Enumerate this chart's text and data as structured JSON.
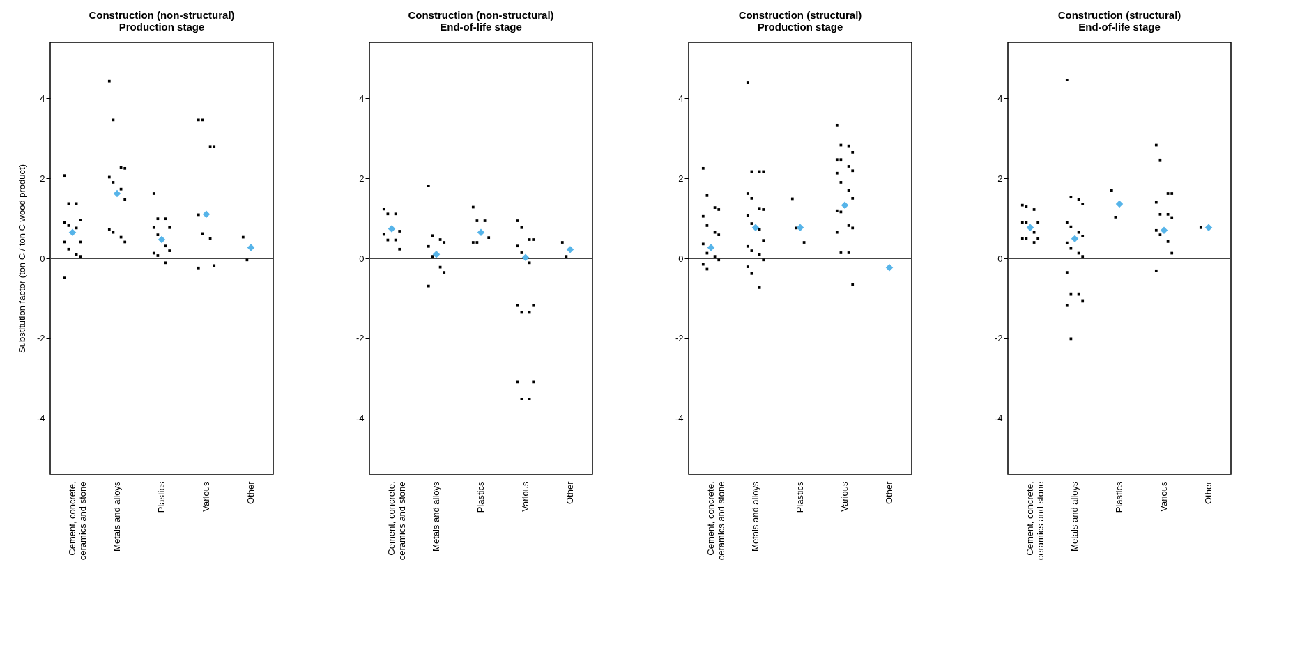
{
  "chart_data": [
    {
      "type": "scatter",
      "title": "Construction (non-structural)\nProduction stage",
      "ylabel": "Substitution factor (ton C / ton C wood product)",
      "categories": [
        "Cement, concrete, ceramics and stone",
        "Metals and alloys",
        "Plastics",
        "Various",
        "Other"
      ],
      "ylim": [
        -5.4,
        5.4
      ],
      "yticks": [
        -4,
        -2,
        0,
        2,
        4
      ],
      "grid": false,
      "ref_lines": [
        {
          "axis": "y",
          "value": 0
        }
      ],
      "series": [
        {
          "color": "#000000",
          "marker": "square",
          "x": [
            "Cement, concrete, ceramics and stone",
            "Cement, concrete, ceramics and stone",
            "Cement, concrete, ceramics and stone",
            "Cement, concrete, ceramics and stone",
            "Cement, concrete, ceramics and stone",
            "Cement, concrete, ceramics and stone",
            "Cement, concrete, ceramics and stone",
            "Cement, concrete, ceramics and stone",
            "Cement, concrete, ceramics and stone",
            "Cement, concrete, ceramics and stone",
            "Cement, concrete, ceramics and stone",
            "Cement, concrete, ceramics and stone",
            "Cement, concrete, ceramics and stone",
            "Metals and alloys",
            "Metals and alloys",
            "Metals and alloys",
            "Metals and alloys",
            "Metals and alloys",
            "Metals and alloys",
            "Metals and alloys",
            "Metals and alloys",
            "Metals and alloys",
            "Metals and alloys",
            "Metals and alloys",
            "Metals and alloys",
            "Plastics",
            "Plastics",
            "Plastics",
            "Plastics",
            "Plastics",
            "Plastics",
            "Plastics",
            "Plastics",
            "Plastics",
            "Plastics",
            "Plastics",
            "Various",
            "Various",
            "Various",
            "Various",
            "Various",
            "Various",
            "Various",
            "Various",
            "Various",
            "Other",
            "Other"
          ],
          "values": [
            2.07,
            1.37,
            1.37,
            0.96,
            0.9,
            0.82,
            0.76,
            0.41,
            0.41,
            0.23,
            0.1,
            0.05,
            -0.49,
            4.43,
            3.46,
            2.27,
            2.25,
            2.03,
            1.9,
            1.73,
            1.47,
            0.73,
            0.65,
            0.53,
            0.41,
            1.62,
            0.99,
            0.99,
            0.77,
            0.77,
            0.59,
            0.31,
            0.19,
            0.13,
            0.07,
            -0.11,
            3.46,
            3.46,
            2.8,
            2.8,
            1.09,
            0.62,
            0.49,
            -0.18,
            -0.24,
            0.53,
            -0.04
          ]
        },
        {
          "color": "#56b4e9",
          "marker": "diamond",
          "x": [
            "Cement, concrete, ceramics and stone",
            "Metals and alloys",
            "Plastics",
            "Various",
            "Other"
          ],
          "values": [
            0.65,
            1.62,
            0.47,
            1.1,
            0.27
          ]
        }
      ]
    },
    {
      "type": "scatter",
      "title": "Construction (non-structural)\nEnd-of-life stage",
      "categories": [
        "Cement, concrete, ceramics and stone",
        "Metals and alloys",
        "Plastics",
        "Various",
        "Other"
      ],
      "ylim": [
        -5.4,
        5.4
      ],
      "yticks": [
        -4,
        -2,
        0,
        2,
        4
      ],
      "grid": false,
      "ref_lines": [
        {
          "axis": "y",
          "value": 0
        }
      ],
      "series": [
        {
          "color": "#000000",
          "marker": "square",
          "x": [
            "Cement, concrete, ceramics and stone",
            "Cement, concrete, ceramics and stone",
            "Cement, concrete, ceramics and stone",
            "Cement, concrete, ceramics and stone",
            "Cement, concrete, ceramics and stone",
            "Cement, concrete, ceramics and stone",
            "Cement, concrete, ceramics and stone",
            "Cement, concrete, ceramics and stone",
            "Metals and alloys",
            "Metals and alloys",
            "Metals and alloys",
            "Metals and alloys",
            "Metals and alloys",
            "Metals and alloys",
            "Metals and alloys",
            "Metals and alloys",
            "Metals and alloys",
            "Plastics",
            "Plastics",
            "Plastics",
            "Plastics",
            "Plastics",
            "Plastics",
            "Various",
            "Various",
            "Various",
            "Various",
            "Various",
            "Various",
            "Various",
            "Various",
            "Various",
            "Various",
            "Various",
            "Various",
            "Various",
            "Various",
            "Various",
            "Other",
            "Other"
          ],
          "values": [
            1.23,
            1.11,
            1.11,
            0.68,
            0.6,
            0.46,
            0.46,
            0.23,
            1.81,
            0.57,
            0.47,
            0.4,
            0.3,
            0.05,
            -0.22,
            -0.35,
            -0.69,
            1.28,
            0.94,
            0.94,
            0.52,
            0.4,
            0.4,
            0.94,
            0.77,
            0.47,
            0.47,
            0.31,
            0.14,
            -0.11,
            -1.18,
            -1.18,
            -1.35,
            -1.35,
            -3.09,
            -3.09,
            -3.52,
            -3.52,
            0.4,
            0.05
          ]
        },
        {
          "color": "#56b4e9",
          "marker": "diamond",
          "x": [
            "Cement, concrete, ceramics and stone",
            "Metals and alloys",
            "Plastics",
            "Various",
            "Other"
          ],
          "values": [
            0.74,
            0.1,
            0.65,
            0.02,
            0.22
          ]
        }
      ]
    },
    {
      "type": "scatter",
      "title": "Construction (structural)\nProduction stage",
      "categories": [
        "Cement, concrete, ceramics and stone",
        "Metals and alloys",
        "Plastics",
        "Various",
        "Other"
      ],
      "ylim": [
        -5.4,
        5.4
      ],
      "yticks": [
        -4,
        -2,
        0,
        2,
        4
      ],
      "grid": false,
      "ref_lines": [
        {
          "axis": "y",
          "value": 0
        }
      ],
      "series": [
        {
          "color": "#000000",
          "marker": "square",
          "x": [
            "Cement, concrete, ceramics and stone",
            "Cement, concrete, ceramics and stone",
            "Cement, concrete, ceramics and stone",
            "Cement, concrete, ceramics and stone",
            "Cement, concrete, ceramics and stone",
            "Cement, concrete, ceramics and stone",
            "Cement, concrete, ceramics and stone",
            "Cement, concrete, ceramics and stone",
            "Cement, concrete, ceramics and stone",
            "Cement, concrete, ceramics and stone",
            "Cement, concrete, ceramics and stone",
            "Cement, concrete, ceramics and stone",
            "Cement, concrete, ceramics and stone",
            "Cement, concrete, ceramics and stone",
            "Metals and alloys",
            "Metals and alloys",
            "Metals and alloys",
            "Metals and alloys",
            "Metals and alloys",
            "Metals and alloys",
            "Metals and alloys",
            "Metals and alloys",
            "Metals and alloys",
            "Metals and alloys",
            "Metals and alloys",
            "Metals and alloys",
            "Metals and alloys",
            "Metals and alloys",
            "Metals and alloys",
            "Metals and alloys",
            "Metals and alloys",
            "Metals and alloys",
            "Metals and alloys",
            "Plastics",
            "Plastics",
            "Plastics",
            "Various",
            "Various",
            "Various",
            "Various",
            "Various",
            "Various",
            "Various",
            "Various",
            "Various",
            "Various",
            "Various",
            "Various",
            "Various",
            "Various",
            "Various",
            "Various",
            "Various",
            "Various",
            "Various",
            "Various"
          ],
          "values": [
            2.25,
            1.57,
            1.27,
            1.22,
            1.05,
            0.82,
            0.65,
            0.59,
            0.36,
            0.13,
            0.05,
            -0.04,
            -0.15,
            -0.27,
            4.39,
            2.17,
            2.17,
            2.17,
            1.62,
            1.5,
            1.25,
            1.22,
            1.07,
            0.87,
            0.73,
            0.45,
            0.3,
            0.19,
            0.1,
            -0.04,
            -0.21,
            -0.38,
            -0.73,
            1.49,
            0.76,
            0.4,
            3.33,
            2.83,
            2.81,
            2.65,
            2.47,
            2.47,
            2.3,
            2.19,
            2.13,
            1.9,
            1.7,
            1.5,
            1.19,
            1.16,
            0.82,
            0.76,
            0.65,
            0.14,
            0.14,
            -0.66
          ]
        },
        {
          "color": "#56b4e9",
          "marker": "diamond",
          "x": [
            "Cement, concrete, ceramics and stone",
            "Metals and alloys",
            "Plastics",
            "Various",
            "Other"
          ],
          "values": [
            0.27,
            0.77,
            0.77,
            1.33,
            -0.23
          ]
        }
      ]
    },
    {
      "type": "scatter",
      "title": "Construction (structural)\nEnd-of-life stage",
      "categories": [
        "Cement, concrete, ceramics and stone",
        "Metals and alloys",
        "Plastics",
        "Various",
        "Other"
      ],
      "ylim": [
        -5.4,
        5.4
      ],
      "yticks": [
        -4,
        -2,
        0,
        2,
        4
      ],
      "grid": false,
      "ref_lines": [
        {
          "axis": "y",
          "value": 0
        }
      ],
      "series": [
        {
          "color": "#000000",
          "marker": "square",
          "x": [
            "Cement, concrete, ceramics and stone",
            "Cement, concrete, ceramics and stone",
            "Cement, concrete, ceramics and stone",
            "Cement, concrete, ceramics and stone",
            "Cement, concrete, ceramics and stone",
            "Cement, concrete, ceramics and stone",
            "Cement, concrete, ceramics and stone",
            "Cement, concrete, ceramics and stone",
            "Cement, concrete, ceramics and stone",
            "Cement, concrete, ceramics and stone",
            "Cement, concrete, ceramics and stone",
            "Metals and alloys",
            "Metals and alloys",
            "Metals and alloys",
            "Metals and alloys",
            "Metals and alloys",
            "Metals and alloys",
            "Metals and alloys",
            "Metals and alloys",
            "Metals and alloys",
            "Metals and alloys",
            "Metals and alloys",
            "Metals and alloys",
            "Metals and alloys",
            "Metals and alloys",
            "Metals and alloys",
            "Metals and alloys",
            "Metals and alloys",
            "Metals and alloys",
            "Plastics",
            "Plastics",
            "Various",
            "Various",
            "Various",
            "Various",
            "Various",
            "Various",
            "Various",
            "Various",
            "Various",
            "Various",
            "Various",
            "Various",
            "Various",
            "Other"
          ],
          "values": [
            1.33,
            1.29,
            1.22,
            0.9,
            0.9,
            0.9,
            0.65,
            0.5,
            0.5,
            0.5,
            0.4,
            4.46,
            1.53,
            1.47,
            1.36,
            0.9,
            0.79,
            0.65,
            0.56,
            0.39,
            0.25,
            0.13,
            0.05,
            -0.35,
            -0.9,
            -0.9,
            -1.07,
            -1.18,
            -2.01,
            1.7,
            1.03,
            2.83,
            2.46,
            1.62,
            1.62,
            1.4,
            1.1,
            1.1,
            1.02,
            0.7,
            0.59,
            0.42,
            0.13,
            -0.31,
            0.77
          ]
        },
        {
          "color": "#56b4e9",
          "marker": "diamond",
          "x": [
            "Cement, concrete, ceramics and stone",
            "Metals and alloys",
            "Plastics",
            "Various",
            "Other"
          ],
          "values": [
            0.77,
            0.49,
            1.36,
            0.7,
            0.77
          ]
        }
      ]
    }
  ]
}
